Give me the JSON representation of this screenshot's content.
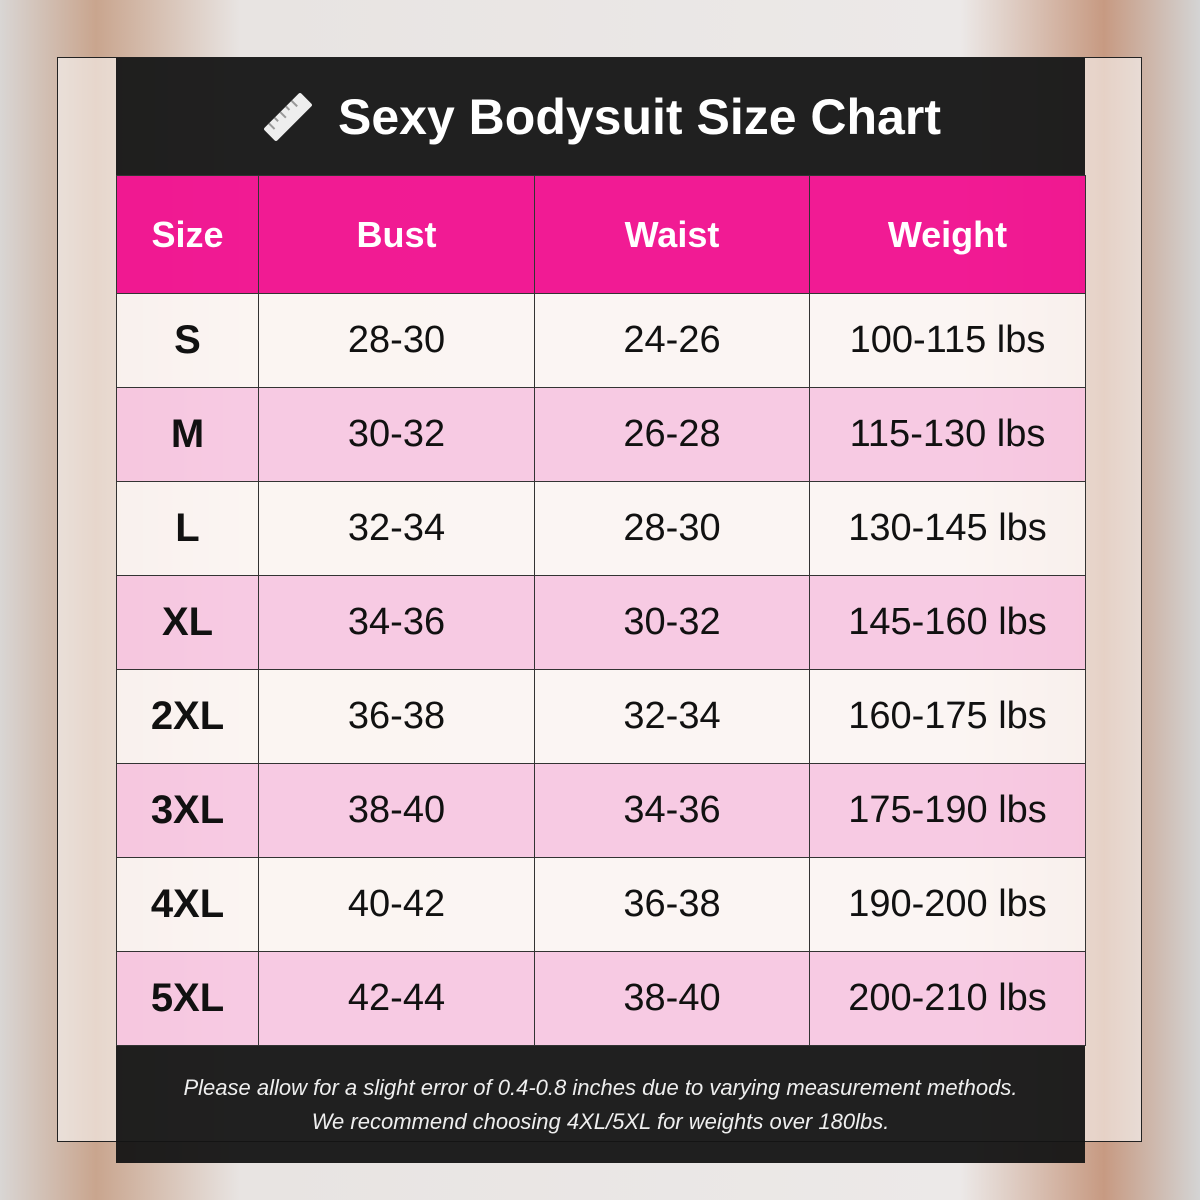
{
  "title": "Sexy Bodysuit Size Chart",
  "icon": "ruler-icon",
  "accent_color": "#f00a8c",
  "columns": [
    "Size",
    "Bust",
    "Waist",
    "Weight"
  ],
  "rows": [
    [
      "S",
      "28-30",
      "24-26",
      "100-115 lbs"
    ],
    [
      "M",
      "30-32",
      "26-28",
      "115-130 lbs"
    ],
    [
      "L",
      "32-34",
      "28-30",
      "130-145 lbs"
    ],
    [
      "XL",
      "34-36",
      "30-32",
      "145-160 lbs"
    ],
    [
      "2XL",
      "36-38",
      "32-34",
      "160-175 lbs"
    ],
    [
      "3XL",
      "38-40",
      "34-36",
      "175-190 lbs"
    ],
    [
      "4XL",
      "40-42",
      "36-38",
      "190-200 lbs"
    ],
    [
      "5XL",
      "42-44",
      "38-40",
      "200-210 lbs"
    ]
  ],
  "footer": {
    "line1": "Please allow for a slight error of 0.4-0.8 inches due to varying measurement methods.",
    "line2": "We recommend choosing 4XL/5XL for weights over 180lbs."
  }
}
